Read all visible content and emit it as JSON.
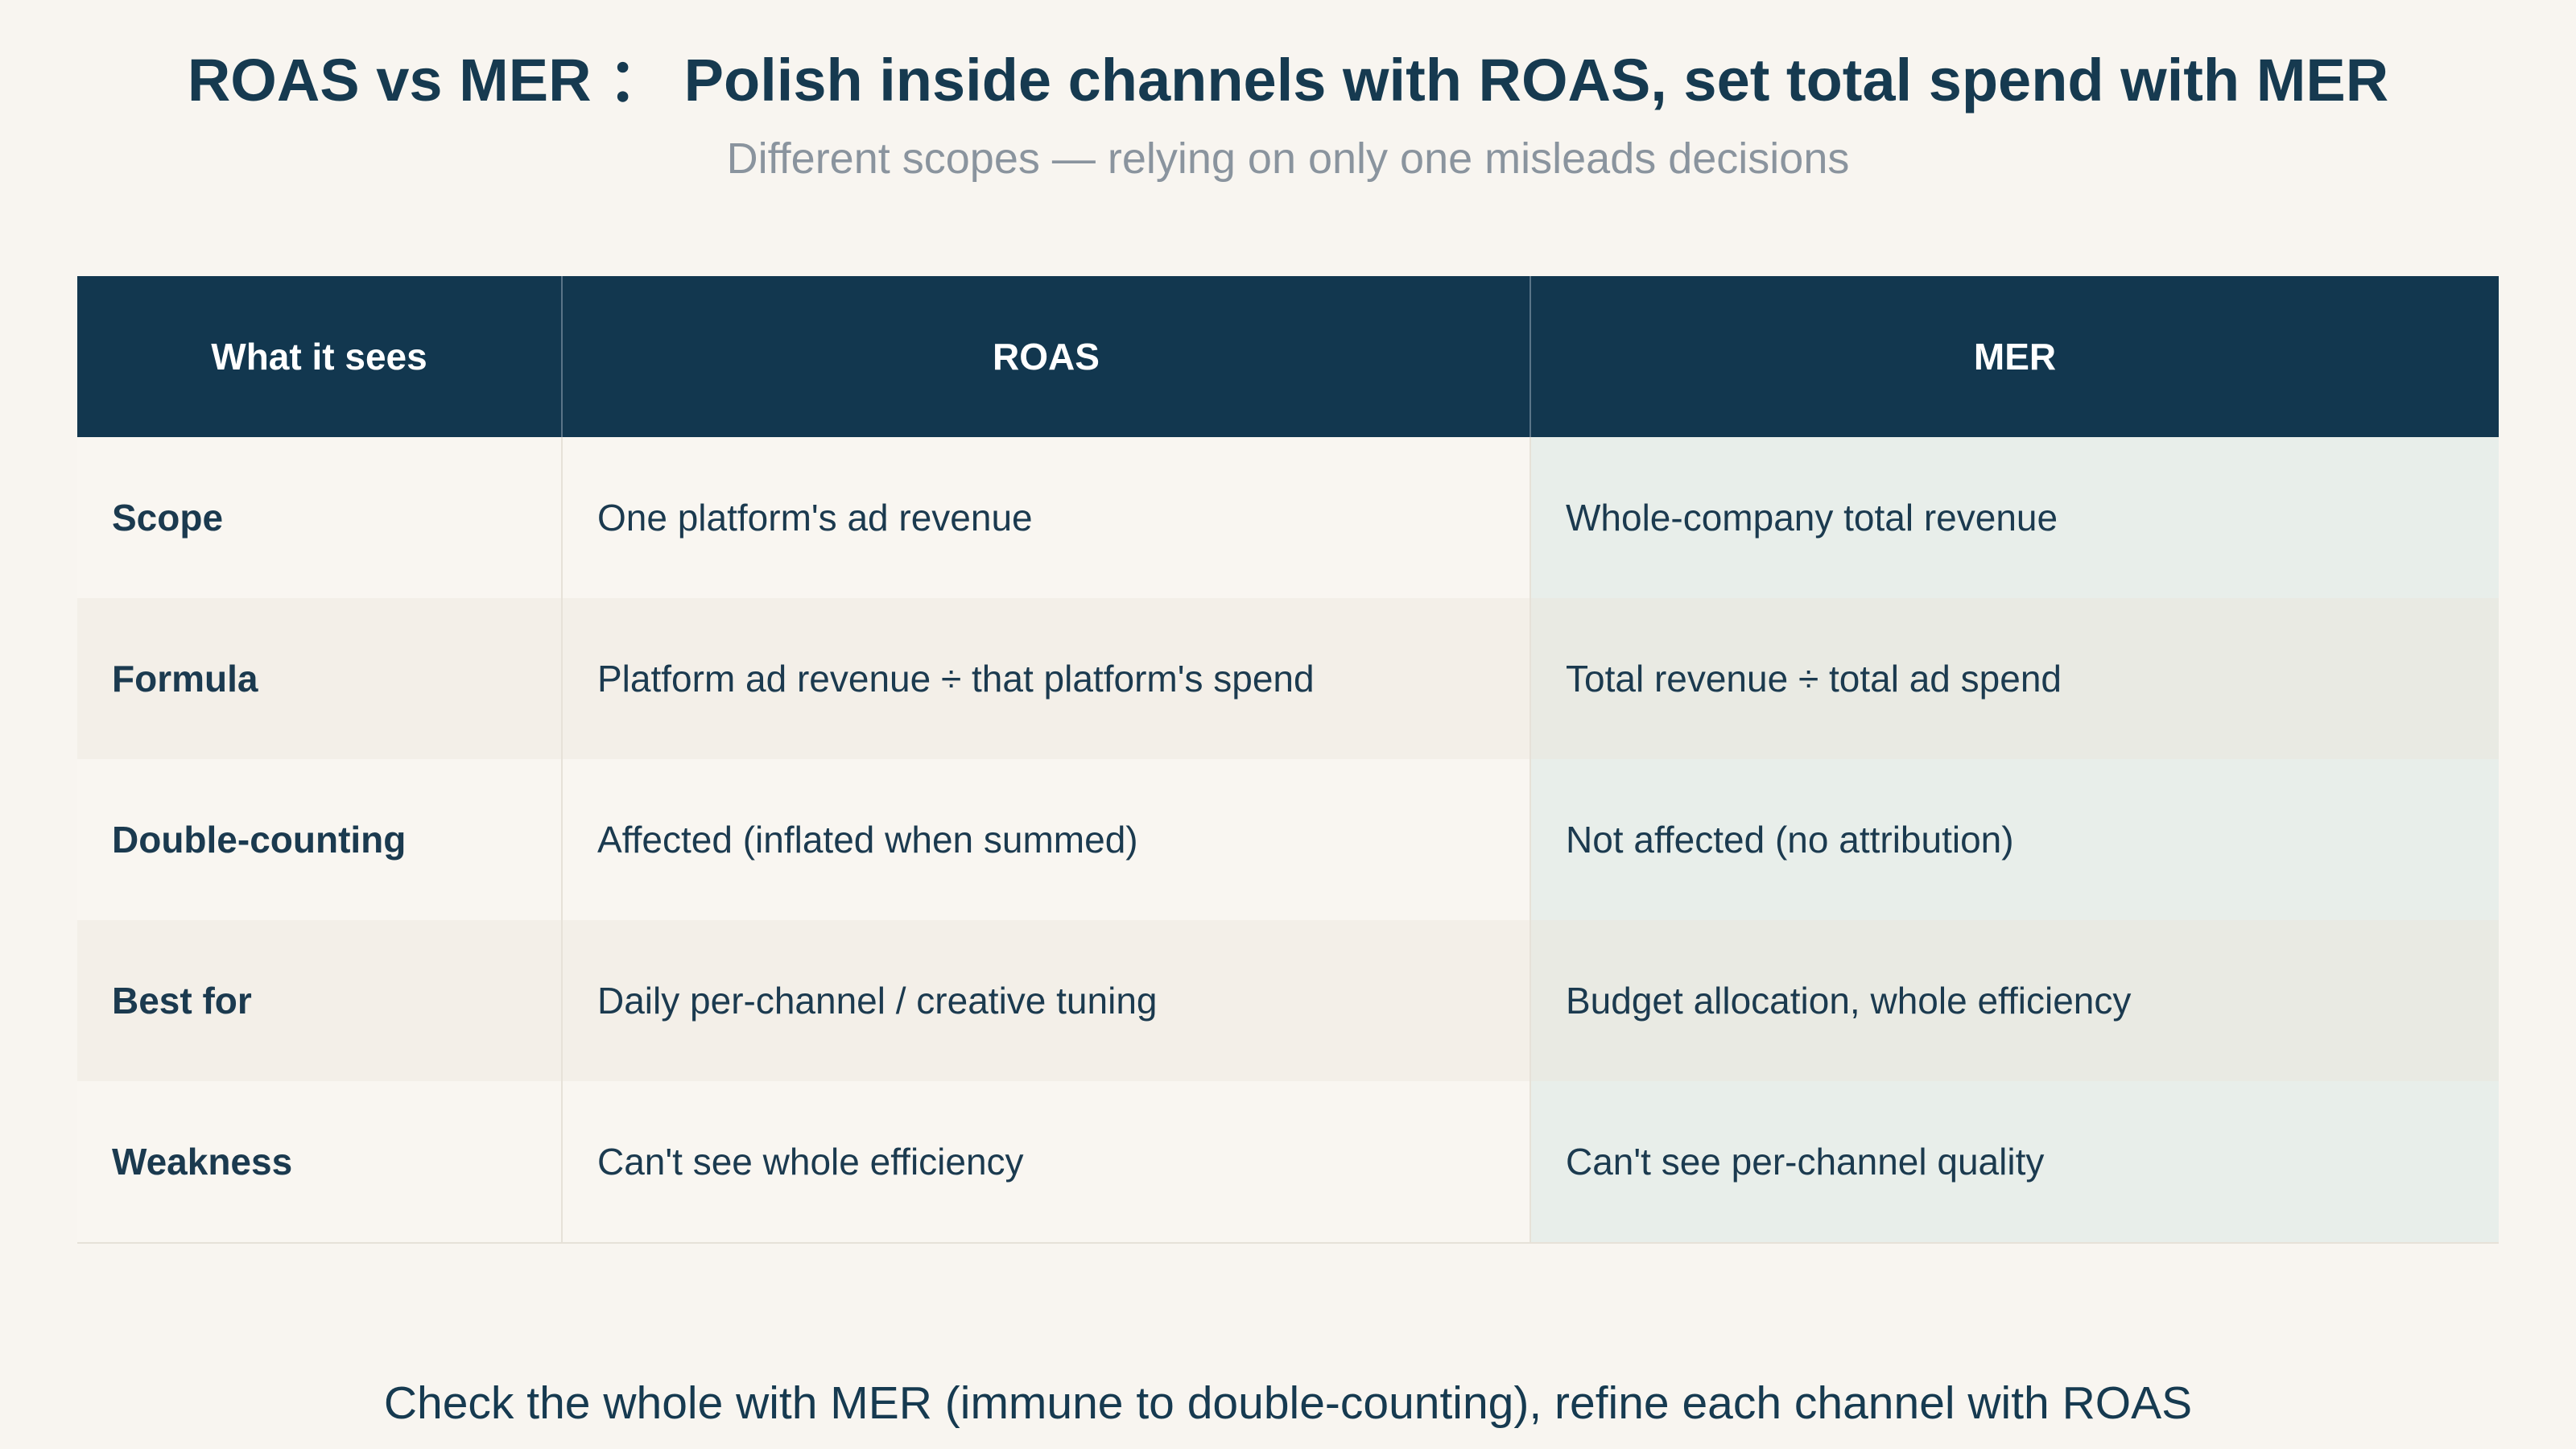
{
  "header": {
    "title": "ROAS vs MER ： Polish inside channels with ROAS, set total spend with MER",
    "subtitle": "Different scopes — relying on only one misleads decisions"
  },
  "table": {
    "columns": [
      "What it sees",
      "ROAS",
      "MER"
    ],
    "rows": [
      [
        "Scope",
        "One platform's ad revenue",
        "Whole-company total revenue"
      ],
      [
        "Formula",
        "Platform ad revenue ÷ that platform's spend",
        "Total revenue ÷ total ad spend"
      ],
      [
        "Double-counting",
        "Affected (inflated when summed)",
        "Not affected (no attribution)"
      ],
      [
        "Best for",
        "Daily per-channel / creative tuning",
        "Budget allocation, whole efficiency"
      ],
      [
        "Weakness",
        "Can't see whole efficiency",
        "Can't see per-channel quality"
      ]
    ]
  },
  "footer": {
    "text": "Check the whole with MER (immune to double-counting), refine each channel with ROAS"
  }
}
